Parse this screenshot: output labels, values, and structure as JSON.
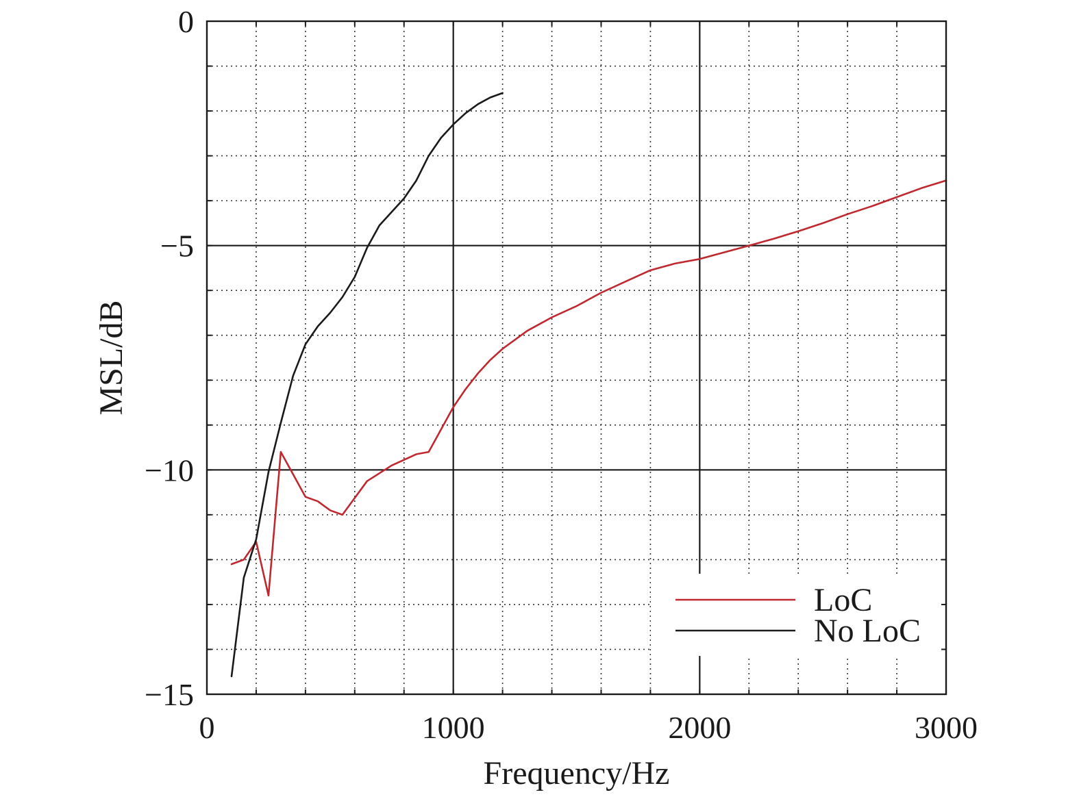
{
  "chart_data": {
    "type": "line",
    "title": "",
    "xlabel": "Frequency/Hz",
    "ylabel": "MSL/dB",
    "xlim": [
      0,
      3000
    ],
    "ylim": [
      -15,
      0
    ],
    "x_ticks": [
      0,
      1000,
      2000,
      3000
    ],
    "x_tick_labels": [
      "0",
      "1000",
      "2000",
      "3000"
    ],
    "y_ticks": [
      0,
      -5,
      -10,
      -15
    ],
    "y_tick_labels": [
      "0",
      "−5",
      "−10",
      "−15"
    ],
    "x_minor_step": 200,
    "y_minor_step": 1,
    "grid": true,
    "legend_position": "bottom-right",
    "series": [
      {
        "name": "LoC",
        "color": "#c0282f",
        "x": [
          100,
          150,
          200,
          250,
          300,
          350,
          400,
          450,
          500,
          550,
          650,
          750,
          850,
          900,
          950,
          1000,
          1050,
          1100,
          1150,
          1200,
          1300,
          1400,
          1500,
          1600,
          1700,
          1800,
          1900,
          2000,
          2100,
          2200,
          2300,
          2400,
          2500,
          2600,
          2700,
          2800,
          2900,
          3000
        ],
        "y": [
          -12.1,
          -12.0,
          -11.6,
          -12.8,
          -9.6,
          -10.1,
          -10.6,
          -10.7,
          -10.9,
          -11.0,
          -10.25,
          -9.9,
          -9.65,
          -9.6,
          -9.1,
          -8.6,
          -8.2,
          -7.85,
          -7.55,
          -7.3,
          -6.9,
          -6.6,
          -6.35,
          -6.05,
          -5.8,
          -5.55,
          -5.4,
          -5.3,
          -5.15,
          -5.0,
          -4.85,
          -4.68,
          -4.5,
          -4.3,
          -4.12,
          -3.92,
          -3.72,
          -3.55
        ]
      },
      {
        "name": "No LoC",
        "color": "#1a1a1a",
        "x": [
          100,
          150,
          200,
          250,
          300,
          350,
          400,
          450,
          500,
          550,
          600,
          650,
          700,
          750,
          800,
          850,
          900,
          950,
          1000,
          1050,
          1100,
          1150,
          1200
        ],
        "y": [
          -14.6,
          -12.4,
          -11.55,
          -10.05,
          -8.95,
          -7.9,
          -7.2,
          -6.8,
          -6.5,
          -6.15,
          -5.7,
          -5.05,
          -4.55,
          -4.25,
          -3.95,
          -3.55,
          -3.0,
          -2.6,
          -2.3,
          -2.05,
          -1.85,
          -1.7,
          -1.6
        ]
      }
    ]
  }
}
